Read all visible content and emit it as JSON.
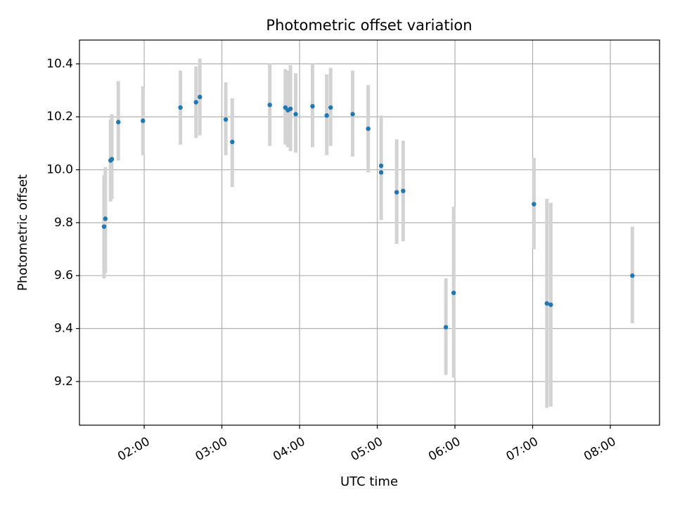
{
  "chart_data": {
    "type": "scatter",
    "title": "Photometric offset variation",
    "xlabel": "UTC time",
    "ylabel": "Photometric offset",
    "xlim": [
      "01:10",
      "08:38"
    ],
    "ylim": [
      9.035,
      10.49
    ],
    "xticks": [
      "02:00",
      "03:00",
      "04:00",
      "05:00",
      "06:00",
      "07:00",
      "08:00"
    ],
    "yticks": [
      9.2,
      9.4,
      9.6,
      9.8,
      10.0,
      10.2,
      10.4
    ],
    "ytick_labels": [
      "9.2",
      "9.4",
      "9.6",
      "9.8",
      "10.0",
      "10.2",
      "10.4"
    ],
    "grid": true,
    "colors": {
      "marker": "#1f77b4",
      "errorbar": "#d3d3d3",
      "grid": "#b0b0b0"
    },
    "points": [
      {
        "x": "01:29",
        "y": 9.785,
        "lo": 9.59,
        "hi": 9.98
      },
      {
        "x": "01:30",
        "y": 9.815,
        "lo": 9.61,
        "hi": 10.01
      },
      {
        "x": "01:34",
        "y": 10.035,
        "lo": 9.88,
        "hi": 10.19
      },
      {
        "x": "01:35",
        "y": 10.04,
        "lo": 9.89,
        "hi": 10.21
      },
      {
        "x": "01:40",
        "y": 10.18,
        "lo": 10.035,
        "hi": 10.335
      },
      {
        "x": "01:59",
        "y": 10.185,
        "lo": 10.055,
        "hi": 10.315
      },
      {
        "x": "02:28",
        "y": 10.235,
        "lo": 10.095,
        "hi": 10.375
      },
      {
        "x": "02:40",
        "y": 10.255,
        "lo": 10.12,
        "hi": 10.39
      },
      {
        "x": "02:43",
        "y": 10.275,
        "lo": 10.13,
        "hi": 10.42
      },
      {
        "x": "03:03",
        "y": 10.19,
        "lo": 10.055,
        "hi": 10.33
      },
      {
        "x": "03:08",
        "y": 10.105,
        "lo": 9.935,
        "hi": 10.27
      },
      {
        "x": "03:37",
        "y": 10.245,
        "lo": 10.09,
        "hi": 10.4
      },
      {
        "x": "03:49",
        "y": 10.235,
        "lo": 10.095,
        "hi": 10.38
      },
      {
        "x": "03:51",
        "y": 10.225,
        "lo": 10.085,
        "hi": 10.375
      },
      {
        "x": "03:53",
        "y": 10.23,
        "lo": 10.07,
        "hi": 10.395
      },
      {
        "x": "03:57",
        "y": 10.21,
        "lo": 10.065,
        "hi": 10.365
      },
      {
        "x": "04:10",
        "y": 10.24,
        "lo": 10.085,
        "hi": 10.4
      },
      {
        "x": "04:21",
        "y": 10.205,
        "lo": 10.055,
        "hi": 10.36
      },
      {
        "x": "04:24",
        "y": 10.235,
        "lo": 10.09,
        "hi": 10.385
      },
      {
        "x": "04:41",
        "y": 10.21,
        "lo": 10.05,
        "hi": 10.375
      },
      {
        "x": "04:53",
        "y": 10.155,
        "lo": 9.99,
        "hi": 10.32
      },
      {
        "x": "05:03",
        "y": 10.015,
        "lo": 9.815,
        "hi": 10.205
      },
      {
        "x": "05:03",
        "y": 9.99,
        "lo": 9.81,
        "hi": 10.175
      },
      {
        "x": "05:15",
        "y": 9.915,
        "lo": 9.72,
        "hi": 10.115
      },
      {
        "x": "05:20",
        "y": 9.92,
        "lo": 9.73,
        "hi": 10.11
      },
      {
        "x": "05:53",
        "y": 9.405,
        "lo": 9.225,
        "hi": 9.59
      },
      {
        "x": "05:59",
        "y": 9.535,
        "lo": 9.215,
        "hi": 9.86
      },
      {
        "x": "07:01",
        "y": 9.87,
        "lo": 9.7,
        "hi": 10.045
      },
      {
        "x": "07:11",
        "y": 9.495,
        "lo": 9.1,
        "hi": 9.89
      },
      {
        "x": "07:14",
        "y": 9.49,
        "lo": 9.105,
        "hi": 9.875
      },
      {
        "x": "08:17",
        "y": 9.6,
        "lo": 9.42,
        "hi": 9.785
      }
    ]
  }
}
